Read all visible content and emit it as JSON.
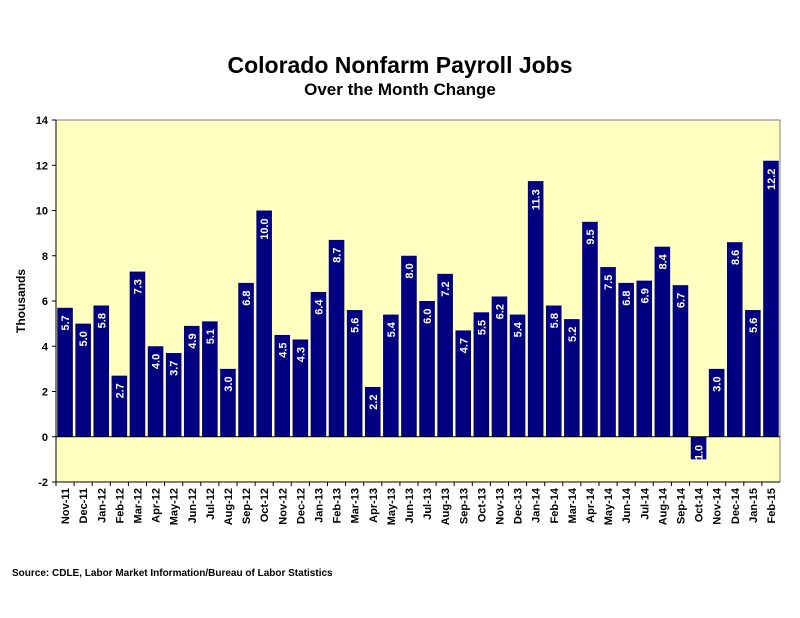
{
  "chart_data": {
    "type": "bar",
    "title": "Colorado Nonfarm Payroll Jobs",
    "subtitle": "Over the Month Change",
    "ylabel": "Thousands",
    "xlabel": "",
    "ylim": [
      -2,
      14
    ],
    "yticks": [
      -2,
      0,
      2,
      4,
      6,
      8,
      10,
      12,
      14
    ],
    "grid": false,
    "legend": "none",
    "categories": [
      "Nov-11",
      "Dec-11",
      "Jan-12",
      "Feb-12",
      "Mar-12",
      "Apr-12",
      "May-12",
      "Jun-12",
      "Jul-12",
      "Aug-12",
      "Sep-12",
      "Oct-12",
      "Nov-12",
      "Dec-12",
      "Jan-13",
      "Feb-13",
      "Mar-13",
      "Apr-13",
      "May-13",
      "Jun-13",
      "Jul-13",
      "Aug-13",
      "Sep-13",
      "Oct-13",
      "Nov-13",
      "Dec-13",
      "Jan-14",
      "Feb-14",
      "Mar-14",
      "Apr-14",
      "May-14",
      "Jun-14",
      "Jul-14",
      "Aug-14",
      "Sep-14",
      "Oct-14",
      "Nov-14",
      "Dec-14",
      "Jan-15",
      "Feb-15"
    ],
    "values": [
      5.7,
      5.0,
      5.8,
      2.7,
      7.3,
      4.0,
      3.7,
      4.9,
      5.1,
      3.0,
      6.8,
      10.0,
      4.5,
      4.3,
      6.4,
      8.7,
      5.6,
      2.2,
      5.4,
      8.0,
      6.0,
      7.2,
      4.7,
      5.5,
      6.2,
      5.4,
      11.3,
      5.8,
      5.2,
      9.5,
      7.5,
      6.8,
      6.9,
      8.4,
      6.7,
      -1.0,
      3.0,
      8.6,
      5.6,
      12.2
    ],
    "data_labels": [
      "5.7",
      "5.0",
      "5.8",
      "2.7",
      "7.3",
      "4.0",
      "3.7",
      "4.9",
      "5.1",
      "3.0",
      "6.8",
      "10.0",
      "4.5",
      "4.3",
      "6.4",
      "8.7",
      "5.6",
      "2.2",
      "5.4",
      "8.0",
      "6.0",
      "7.2",
      "4.7",
      "5.5",
      "6.2",
      "5.4",
      "11.3",
      "5.8",
      "5.2",
      "9.5",
      "7.5",
      "6.8",
      "6.9",
      "8.4",
      "6.7",
      "-1.0",
      "3.0",
      "8.6",
      "5.6",
      "12.2"
    ],
    "colors": {
      "bar": "#000080",
      "plot_background": "#FFFFC0",
      "label": "#ffffff"
    },
    "source": "Source: CDLE, Labor Market Information/Bureau of Labor Statistics"
  }
}
